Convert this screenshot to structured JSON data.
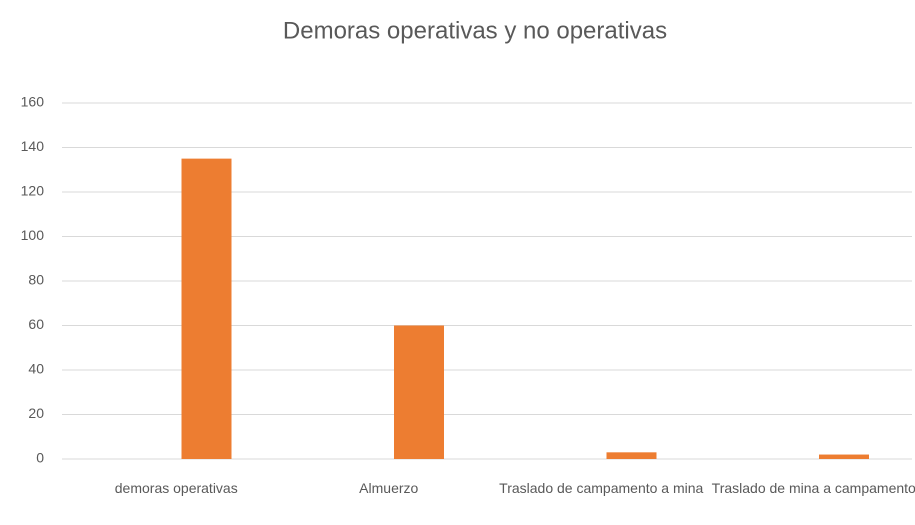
{
  "chart_data": {
    "type": "bar",
    "title": "Demoras operativas y no operativas",
    "categories": [
      "demoras operativas",
      "Almuerzo",
      "Traslado de campamento a mina",
      "Traslado de mina a campamento"
    ],
    "values": [
      135,
      60,
      3,
      2
    ],
    "color": "#ed7d31",
    "ylim": [
      0,
      160
    ],
    "yticks": [
      0,
      20,
      40,
      60,
      80,
      100,
      120,
      140,
      160
    ],
    "grid": true
  }
}
